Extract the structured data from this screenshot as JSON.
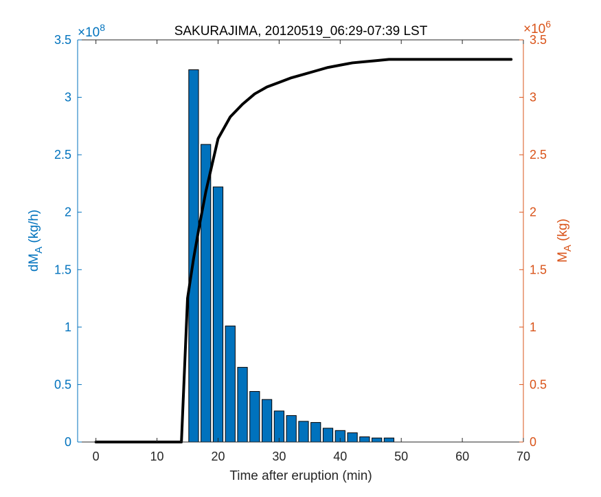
{
  "chart_data": {
    "type": "bar",
    "title": "SAKURAJIMA, 20120519_06:29-07:39 LST",
    "xlabel": "Time after eruption (min)",
    "xlim": [
      -3,
      70
    ],
    "xticks": [
      0,
      10,
      20,
      30,
      40,
      50,
      60,
      70
    ],
    "grid": false,
    "left_axis": {
      "label_main": "dM",
      "label_sub": "A",
      "label_unit": " (kg/h)",
      "color": "#0072BD",
      "ylim": [
        0,
        3.5
      ],
      "ticks": [
        0,
        0.5,
        1,
        1.5,
        2,
        2.5,
        3,
        3.5
      ],
      "tick_labels": [
        "0",
        "0.5",
        "1",
        "1.5",
        "2",
        "2.5",
        "3",
        "3.5"
      ],
      "exponent_base": "×10",
      "exponent_power": "8"
    },
    "right_axis": {
      "label_main": "M",
      "label_sub": "A",
      "label_unit": " (kg)",
      "color": "#D95319",
      "ylim": [
        0,
        3.5
      ],
      "ticks": [
        0,
        0.5,
        1,
        1.5,
        2,
        2.5,
        3,
        3.5
      ],
      "tick_labels": [
        "0",
        "0.5",
        "1",
        "1.5",
        "2",
        "2.5",
        "3",
        "3.5"
      ],
      "exponent_base": "×10",
      "exponent_power": "6"
    },
    "bars": {
      "axis": "left",
      "color": "#0072BD",
      "edge_color": "#000000",
      "x": [
        16,
        18,
        20,
        22,
        24,
        26,
        28,
        30,
        32,
        34,
        36,
        38,
        40,
        42,
        44,
        46,
        48
      ],
      "values": [
        3.24,
        2.59,
        2.22,
        1.01,
        0.65,
        0.44,
        0.37,
        0.27,
        0.23,
        0.18,
        0.17,
        0.12,
        0.1,
        0.08,
        0.045,
        0.035,
        0.035
      ]
    },
    "line": {
      "axis": "right",
      "color": "#000000",
      "x": [
        0,
        2,
        4,
        6,
        8,
        10,
        12,
        14,
        15,
        16,
        17,
        18,
        20,
        22,
        24,
        26,
        28,
        30,
        32,
        34,
        36,
        38,
        40,
        42,
        44,
        46,
        48,
        50,
        52,
        54,
        56,
        58,
        60,
        62,
        64,
        66,
        68
      ],
      "values": [
        0,
        0,
        0,
        0,
        0,
        0,
        0,
        0,
        1.25,
        1.6,
        1.9,
        2.18,
        2.64,
        2.83,
        2.94,
        3.03,
        3.09,
        3.13,
        3.17,
        3.2,
        3.23,
        3.26,
        3.28,
        3.3,
        3.31,
        3.32,
        3.33,
        3.33,
        3.33,
        3.33,
        3.33,
        3.33,
        3.33,
        3.33,
        3.33,
        3.33,
        3.33
      ]
    }
  }
}
